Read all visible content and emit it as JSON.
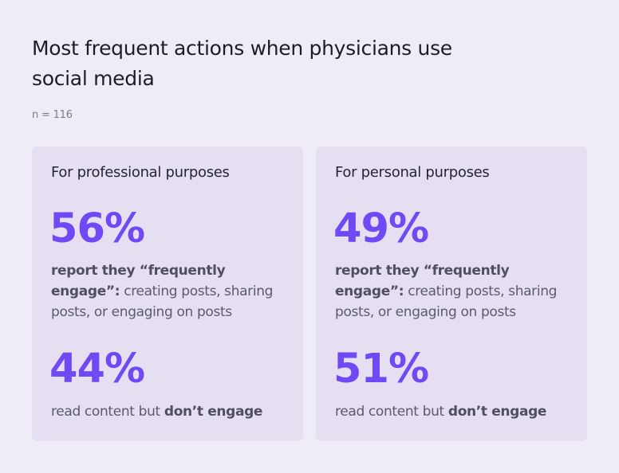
{
  "title": "Most frequent actions when physicians use social media",
  "sample_size": "n = 116",
  "chart_data": {
    "type": "table",
    "title": "Most frequent actions when physicians use social media",
    "subtitle": "n = 116",
    "groups": [
      {
        "name": "For professional purposes",
        "stats": [
          {
            "value": 56,
            "label": "56%",
            "desc_bold": "report they “frequently engage”:",
            "desc_rest": " creating posts, sharing posts, or engaging on posts"
          },
          {
            "value": 44,
            "label": "44%",
            "desc_rest": "read content but ",
            "desc_bold": "don’t engage"
          }
        ]
      },
      {
        "name": "For personal purposes",
        "stats": [
          {
            "value": 49,
            "label": "49%",
            "desc_bold": "report they  “frequently engage”:",
            "desc_rest": " creating posts, sharing posts, or engaging on posts"
          },
          {
            "value": 51,
            "label": "51%",
            "desc_rest": "read content but ",
            "desc_bold": "don’t engage"
          }
        ]
      }
    ]
  },
  "colors": {
    "background": "#f0ecf7",
    "card": "#e6dff1",
    "accent": "#6f49f3"
  }
}
